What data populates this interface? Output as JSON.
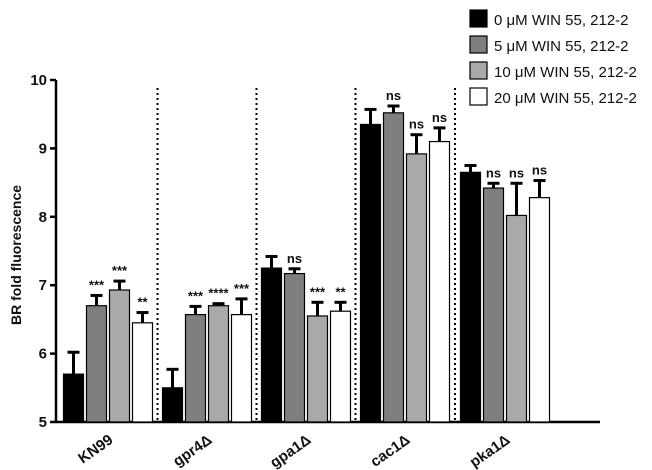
{
  "chart_data": {
    "type": "bar",
    "title": "",
    "xlabel": "",
    "ylabel": "BR fold fluorescence",
    "ylim": [
      5,
      10
    ],
    "yticks": [
      5,
      6,
      7,
      8,
      9,
      10
    ],
    "grid": false,
    "legend_position": "top-right",
    "group_separators": "dotted vertical lines between groups",
    "categories": [
      "KN99",
      "gpr4Δ",
      "gpa1Δ",
      "cac1Δ",
      "pka1Δ"
    ],
    "series": [
      {
        "name": "0 μM WIN 55, 212-2",
        "color": "#000000",
        "values": [
          5.7,
          5.5,
          7.25,
          9.35,
          8.65
        ],
        "errors": [
          0.32,
          0.27,
          0.17,
          0.22,
          0.1
        ],
        "significance": [
          "",
          "",
          "",
          "",
          ""
        ]
      },
      {
        "name": "5 μM WIN 55, 212-2",
        "color": "#7f7f7f",
        "values": [
          6.7,
          6.57,
          7.17,
          9.52,
          8.42
        ],
        "errors": [
          0.15,
          0.12,
          0.07,
          0.1,
          0.07
        ],
        "significance": [
          "***",
          "***",
          "ns",
          "ns",
          "ns"
        ]
      },
      {
        "name": "10 μM WIN 55, 212-2",
        "color": "#a9a9a9",
        "values": [
          6.93,
          6.7,
          6.55,
          8.92,
          8.02
        ],
        "errors": [
          0.13,
          0.03,
          0.2,
          0.28,
          0.47
        ],
        "significance": [
          "***",
          "****",
          "***",
          "ns",
          "ns"
        ]
      },
      {
        "name": "20 μM WIN 55, 212-2",
        "color": "#ffffff",
        "values": [
          6.45,
          6.57,
          6.62,
          9.1,
          8.28
        ],
        "errors": [
          0.15,
          0.23,
          0.13,
          0.2,
          0.25
        ],
        "significance": [
          "**",
          "***",
          "**",
          "ns",
          "ns"
        ]
      }
    ]
  }
}
